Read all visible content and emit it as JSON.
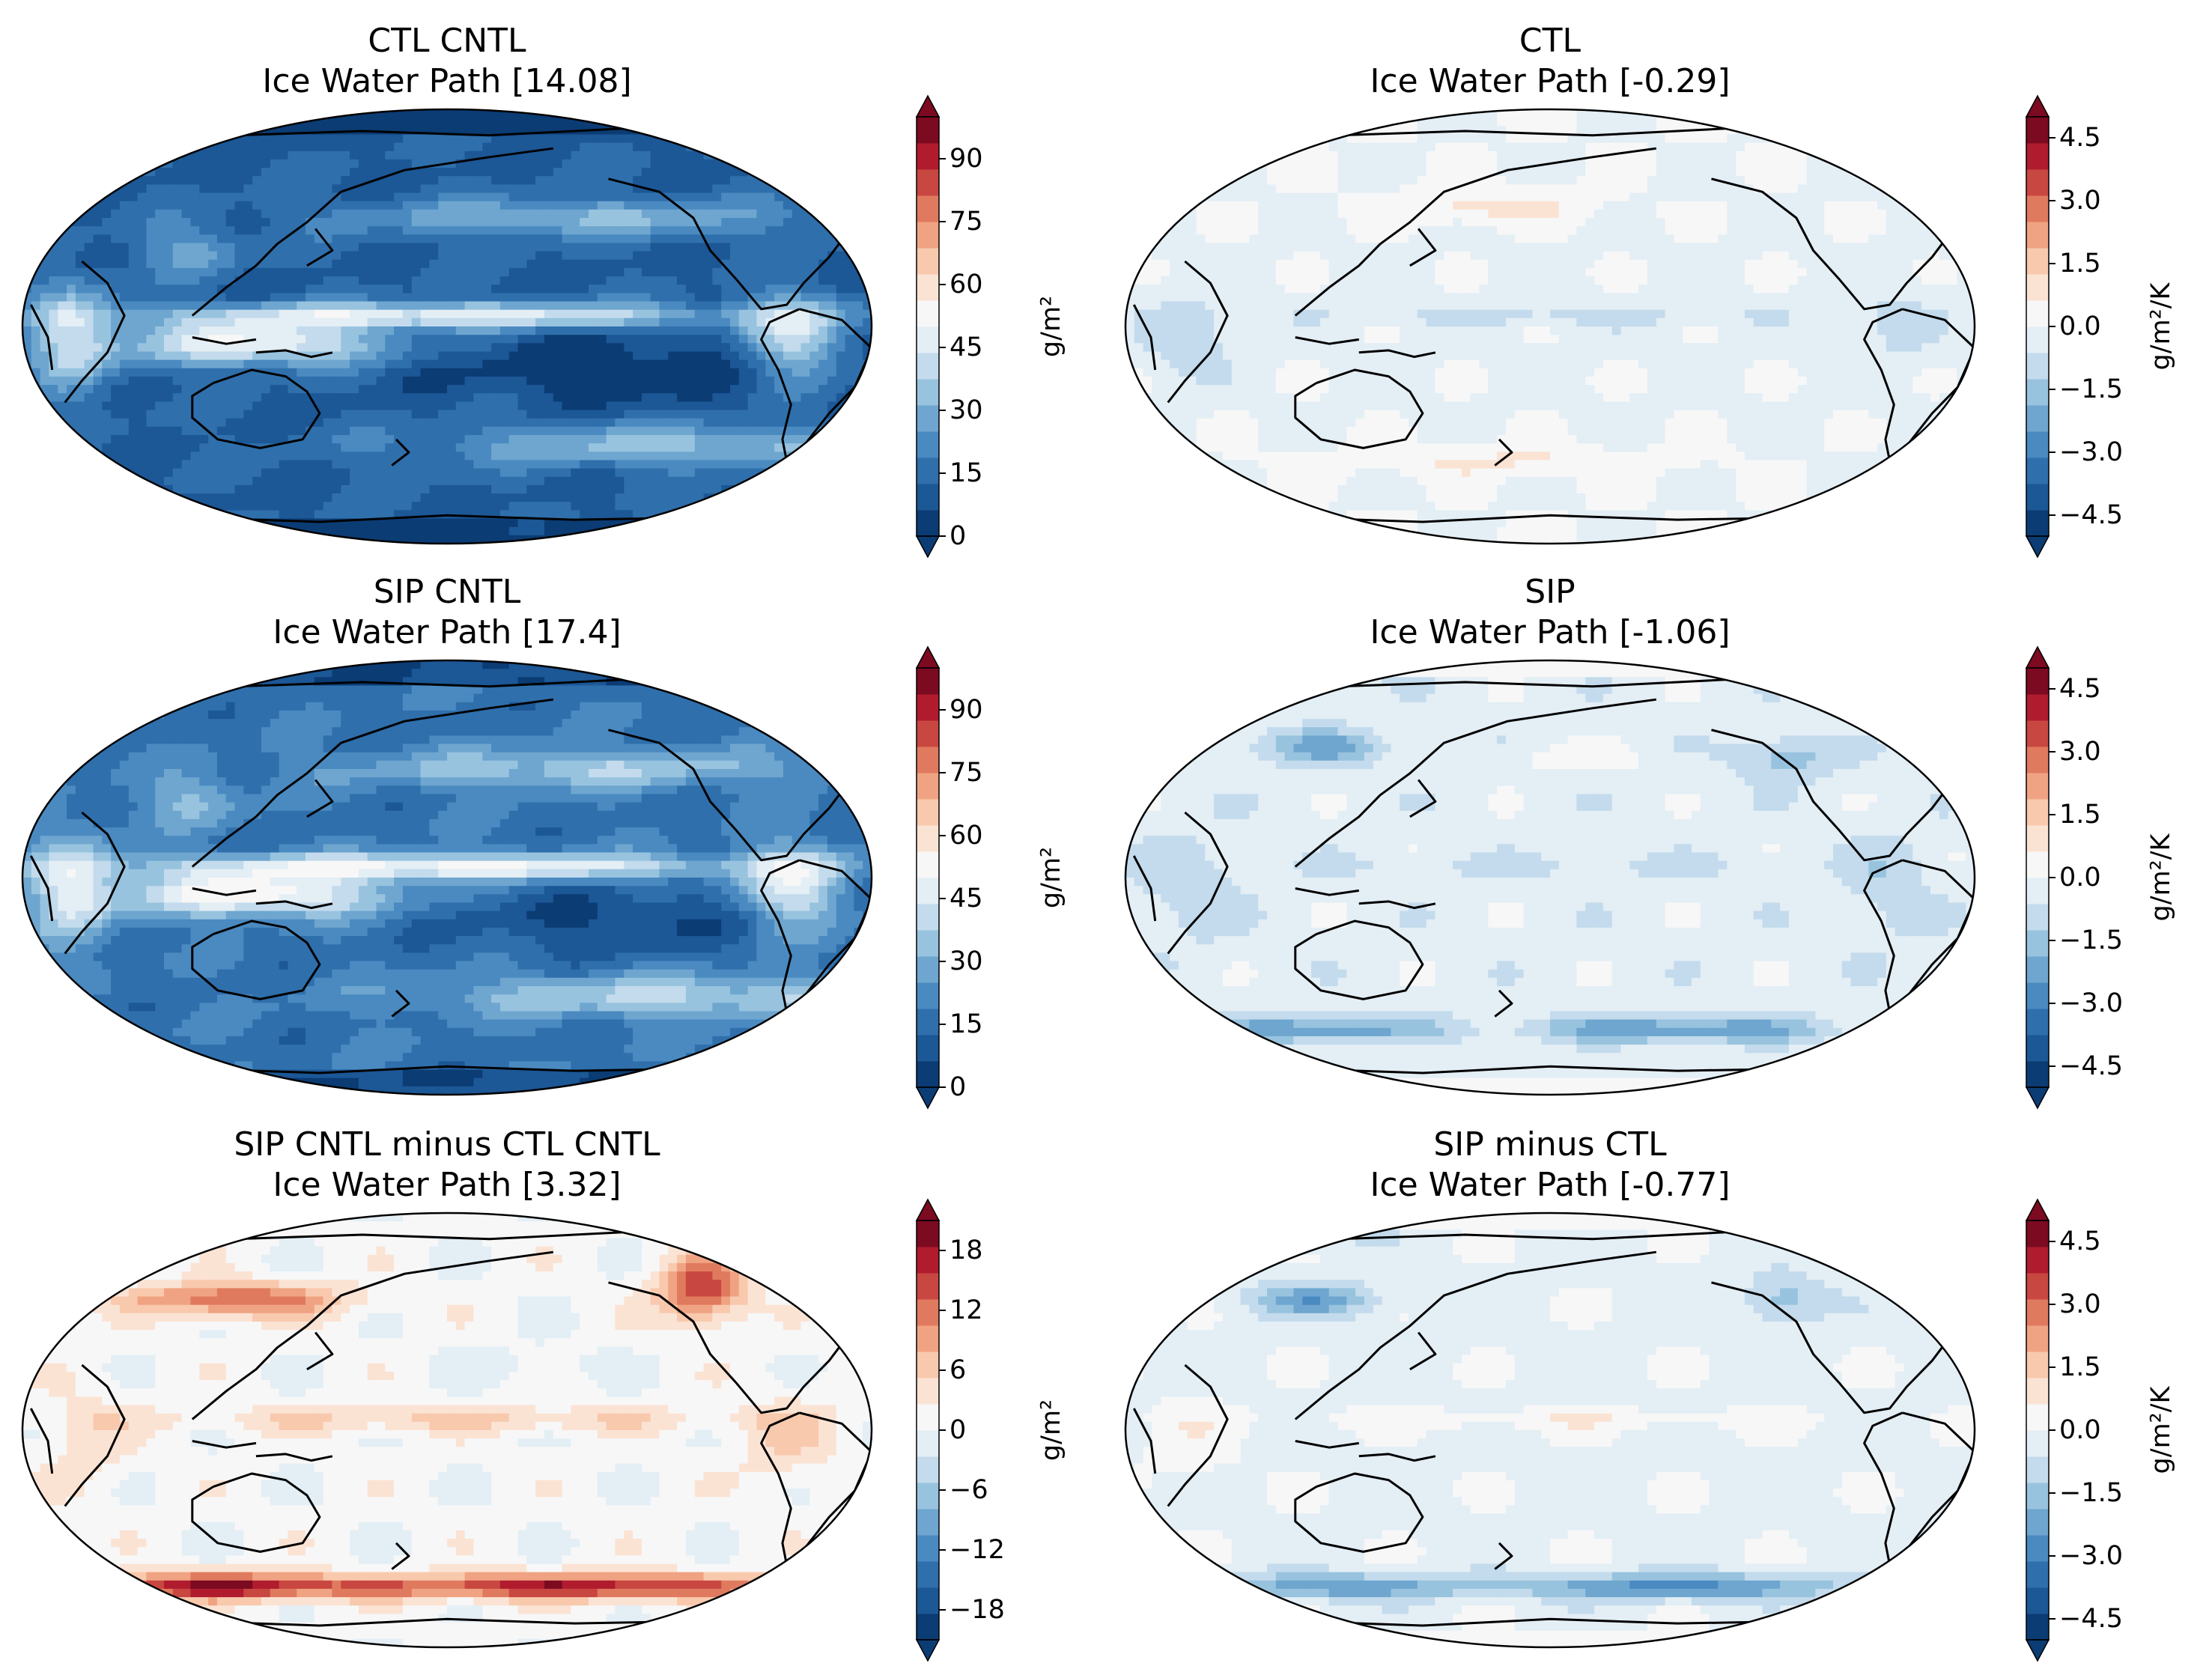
{
  "figure": {
    "panels": [
      {
        "id": "ctl-cntl",
        "title": "CTL CNTL",
        "subtitle": "Ice Water Path [14.08]",
        "cbar_label": "g/m²",
        "cbar_ticks": [
          "0",
          "15",
          "30",
          "45",
          "60",
          "75",
          "90"
        ],
        "cbar_min": 0,
        "cbar_max": 100,
        "kind": "abs-ctl"
      },
      {
        "id": "ctl",
        "title": "CTL",
        "subtitle": "Ice Water Path [-0.29]",
        "cbar_label": "g/m²/K",
        "cbar_ticks": [
          "−4.5",
          "−3.0",
          "−1.5",
          "0.0",
          "1.5",
          "3.0",
          "4.5"
        ],
        "cbar_min": -5,
        "cbar_max": 5,
        "kind": "fb-ctl"
      },
      {
        "id": "sip-cntl",
        "title": "SIP CNTL",
        "subtitle": "Ice Water Path [17.4]",
        "cbar_label": "g/m²",
        "cbar_ticks": [
          "0",
          "15",
          "30",
          "45",
          "60",
          "75",
          "90"
        ],
        "cbar_min": 0,
        "cbar_max": 100,
        "kind": "abs-sip"
      },
      {
        "id": "sip",
        "title": "SIP",
        "subtitle": "Ice Water Path [-1.06]",
        "cbar_label": "g/m²/K",
        "cbar_ticks": [
          "−4.5",
          "−3.0",
          "−1.5",
          "0.0",
          "1.5",
          "3.0",
          "4.5"
        ],
        "cbar_min": -5,
        "cbar_max": 5,
        "kind": "fb-sip"
      },
      {
        "id": "sip-minus-ctl-cntl",
        "title": "SIP CNTL minus CTL CNTL",
        "subtitle": "Ice Water Path [3.32]",
        "cbar_label": "g/m²",
        "cbar_ticks": [
          "−18",
          "−12",
          "−6",
          "0",
          "6",
          "12",
          "18"
        ],
        "cbar_min": -21,
        "cbar_max": 21,
        "kind": "diff-abs"
      },
      {
        "id": "sip-minus-ctl",
        "title": "SIP minus CTL",
        "subtitle": "Ice Water Path [-0.77]",
        "cbar_label": "g/m²/K",
        "cbar_ticks": [
          "−4.5",
          "−3.0",
          "−1.5",
          "0.0",
          "1.5",
          "3.0",
          "4.5"
        ],
        "cbar_min": -5,
        "cbar_max": 5,
        "kind": "diff-fb"
      }
    ],
    "colormap": [
      "#0b3c74",
      "#1c5796",
      "#2f6fac",
      "#4a8ac1",
      "#6ea6cf",
      "#98c3df",
      "#c3dbec",
      "#e3eef5",
      "#f7f7f7",
      "#fbe3d4",
      "#f8c9ad",
      "#f0a382",
      "#e07a5f",
      "#c94741",
      "#b01c2e",
      "#7c0a21"
    ]
  },
  "chart_data": [
    {
      "type": "heatmap",
      "title": "CTL CNTL",
      "subtitle": "Ice Water Path",
      "global_mean": 14.08,
      "units": "g/m²",
      "colorbar_range": [
        0,
        100
      ],
      "colorbar_ticks": [
        0,
        15,
        30,
        45,
        60,
        75,
        90
      ],
      "projection": "Robinson, Pacific-centred"
    },
    {
      "type": "heatmap",
      "title": "CTL",
      "subtitle": "Ice Water Path",
      "global_mean": -0.29,
      "units": "g/m²/K",
      "colorbar_range": [
        -5,
        5
      ],
      "colorbar_ticks": [
        -4.5,
        -3.0,
        -1.5,
        0.0,
        1.5,
        3.0,
        4.5
      ],
      "projection": "Robinson, Pacific-centred"
    },
    {
      "type": "heatmap",
      "title": "SIP CNTL",
      "subtitle": "Ice Water Path",
      "global_mean": 17.4,
      "units": "g/m²",
      "colorbar_range": [
        0,
        100
      ],
      "colorbar_ticks": [
        0,
        15,
        30,
        45,
        60,
        75,
        90
      ],
      "projection": "Robinson, Pacific-centred"
    },
    {
      "type": "heatmap",
      "title": "SIP",
      "subtitle": "Ice Water Path",
      "global_mean": -1.06,
      "units": "g/m²/K",
      "colorbar_range": [
        -5,
        5
      ],
      "colorbar_ticks": [
        -4.5,
        -3.0,
        -1.5,
        0.0,
        1.5,
        3.0,
        4.5
      ],
      "projection": "Robinson, Pacific-centred"
    },
    {
      "type": "heatmap",
      "title": "SIP CNTL minus CTL CNTL",
      "subtitle": "Ice Water Path",
      "global_mean": 3.32,
      "units": "g/m²",
      "colorbar_range": [
        -21,
        21
      ],
      "colorbar_ticks": [
        -18,
        -12,
        -6,
        0,
        6,
        12,
        18
      ],
      "projection": "Robinson, Pacific-centred"
    },
    {
      "type": "heatmap",
      "title": "SIP minus CTL",
      "subtitle": "Ice Water Path",
      "global_mean": -0.77,
      "units": "g/m²/K",
      "colorbar_range": [
        -5,
        5
      ],
      "colorbar_ticks": [
        -4.5,
        -3.0,
        -1.5,
        0.0,
        1.5,
        3.0,
        4.5
      ],
      "projection": "Robinson, Pacific-centred"
    }
  ]
}
